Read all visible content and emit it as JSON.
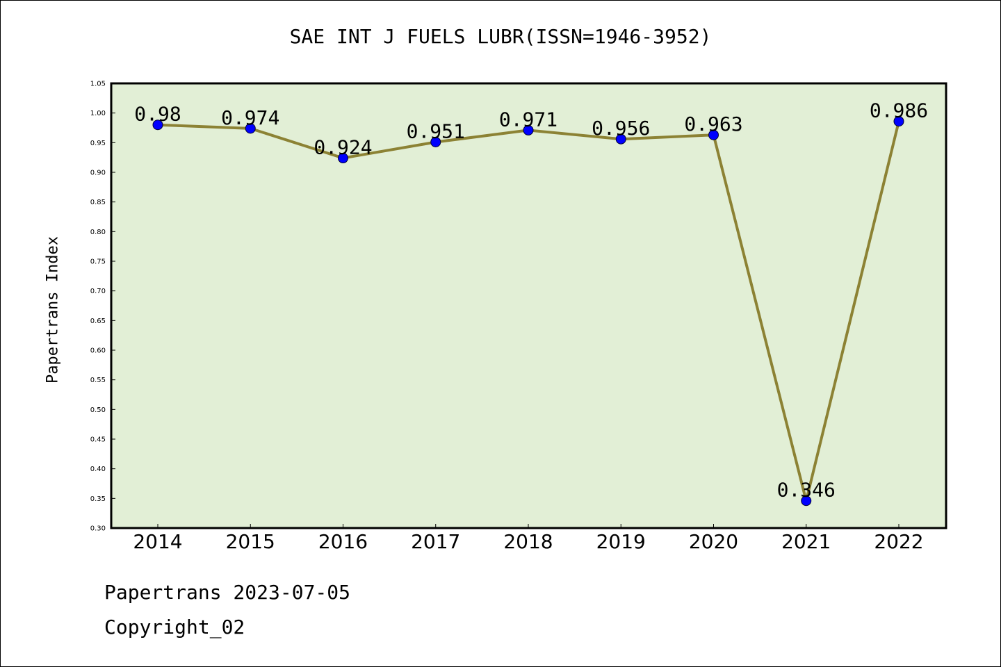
{
  "chart_data": {
    "type": "line",
    "title": "SAE INT J FUELS LUBR(ISSN=1946-3952)",
    "ylabel": "Papertrans Index",
    "xlabel": "",
    "categories": [
      "2014",
      "2015",
      "2016",
      "2017",
      "2018",
      "2019",
      "2020",
      "2021",
      "2022"
    ],
    "series": [
      {
        "values": [
          0.98,
          0.974,
          0.924,
          0.951,
          0.971,
          0.956,
          0.963,
          0.346,
          0.986
        ],
        "labels": [
          "0.98",
          "0.974",
          "0.924",
          "0.951",
          "0.971",
          "0.956",
          "0.963",
          "0.346",
          "0.986"
        ]
      }
    ],
    "ylim": [
      0.3,
      1.05
    ],
    "yticks": [
      "0.30",
      "0.35",
      "0.40",
      "0.45",
      "0.50",
      "0.55",
      "0.60",
      "0.65",
      "0.70",
      "0.75",
      "0.80",
      "0.85",
      "0.90",
      "0.95",
      "1.00",
      "1.05"
    ],
    "grid": false,
    "colors": {
      "plot_background": "#e2efd6",
      "line": "#8c8234",
      "marker": "#0000ff"
    }
  },
  "footer": {
    "line1": "Papertrans 2023-07-05",
    "line2": "Copyright_02"
  }
}
